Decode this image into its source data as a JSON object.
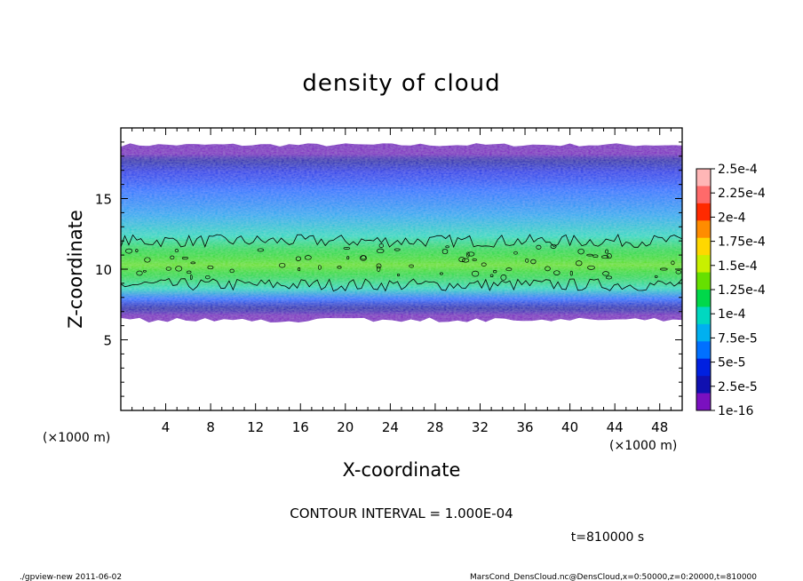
{
  "chart_data": {
    "type": "heatmap",
    "title": "density of cloud",
    "xlabel": "X-coordinate",
    "ylabel": "Z-coordinate",
    "x_unit": "(×1000 m)",
    "z_unit": "(×1000 m)",
    "xlim": [
      0,
      50
    ],
    "ylim": [
      0,
      20
    ],
    "x_ticks": [
      4,
      8,
      12,
      16,
      20,
      24,
      28,
      32,
      36,
      40,
      44,
      48
    ],
    "y_ticks": [
      5,
      10,
      15
    ],
    "grid": false,
    "contour_interval_text": "CONTOUR INTERVAL = 1.000E-04",
    "time_text": "t=810000 s",
    "colorbar": {
      "labels": [
        "2.5e-4",
        "2.25e-4",
        "2e-4",
        "1.75e-4",
        "1.5e-4",
        "1.25e-4",
        "1e-4",
        "7.5e-5",
        "5e-5",
        "2.5e-5",
        "1e-16"
      ],
      "colors": [
        "#ffb6b6",
        "#ff6a6a",
        "#ff2a00",
        "#ff8c00",
        "#ffd700",
        "#c8f000",
        "#66e000",
        "#00d84a",
        "#00d8c0",
        "#00b0f0",
        "#0070ff",
        "#0020e0",
        "#1010b0",
        "#7a10c0"
      ]
    },
    "cloud_layer": {
      "x_range": [
        0,
        50
      ],
      "bottom_z": [
        6.4,
        6.4
      ],
      "top_z": [
        18.8,
        18.8
      ],
      "peak_density_z": 10.5,
      "peak_density_value": 0.00013,
      "contour_levels": [
        0.0001
      ]
    }
  },
  "footer": {
    "left": "./gpview-new   2011-06-02",
    "right": "MarsCond_DensCloud.nc@DensCloud,x=0:50000,z=0:20000,t=810000"
  }
}
